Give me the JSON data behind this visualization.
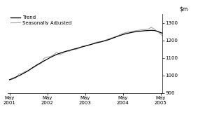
{
  "title": "",
  "ylim": [
    900,
    1350
  ],
  "yticks": [
    900,
    1000,
    1100,
    1200,
    1300
  ],
  "xlim": [
    -0.5,
    48.5
  ],
  "xtick_positions": [
    0,
    12,
    24,
    36,
    48
  ],
  "xtick_labels_line1": [
    "May",
    "May",
    "May",
    "May",
    "May"
  ],
  "xtick_labels_line2": [
    "2001",
    "2002",
    "2003",
    "2004",
    "2005"
  ],
  "trend_color": "#000000",
  "seas_adj_color": "#aaaaaa",
  "trend_linewidth": 0.9,
  "seas_adj_linewidth": 0.85,
  "background_color": "#ffffff",
  "legend_trend": "Trend",
  "legend_seas": "Seasonally Adjusted",
  "trend_data": [
    975,
    982,
    990,
    998,
    1007,
    1017,
    1028,
    1040,
    1052,
    1063,
    1073,
    1083,
    1093,
    1103,
    1112,
    1120,
    1127,
    1133,
    1138,
    1143,
    1148,
    1153,
    1158,
    1163,
    1168,
    1173,
    1178,
    1183,
    1188,
    1192,
    1197,
    1202,
    1208,
    1215,
    1222,
    1228,
    1234,
    1239,
    1243,
    1247,
    1250,
    1252,
    1254,
    1256,
    1257,
    1258,
    1257,
    1252,
    1245,
    1238
  ],
  "seas_data": [
    975,
    978,
    985,
    1008,
    1012,
    1022,
    1025,
    1040,
    1048,
    1060,
    1068,
    1098,
    1105,
    1108,
    1118,
    1132,
    1118,
    1128,
    1140,
    1138,
    1150,
    1148,
    1155,
    1167,
    1168,
    1172,
    1178,
    1186,
    1192,
    1192,
    1198,
    1206,
    1212,
    1218,
    1222,
    1233,
    1240,
    1246,
    1248,
    1252,
    1256,
    1258,
    1262,
    1262,
    1265,
    1276,
    1264,
    1250,
    1236,
    1218
  ]
}
